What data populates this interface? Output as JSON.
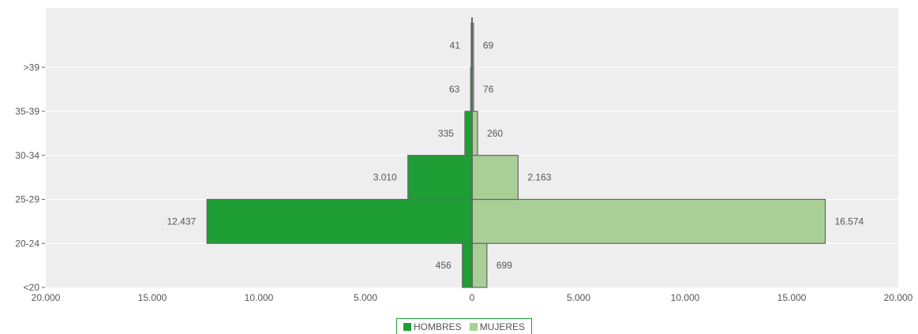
{
  "chart_data": {
    "type": "bar",
    "orientation": "horizontal-population-pyramid",
    "categories": [
      "<20",
      "20-24",
      "25-29",
      "30-34",
      "35-39",
      ">39"
    ],
    "series": [
      {
        "name": "HOMBRES",
        "color": "#1f9e35",
        "values": [
          456,
          12437,
          3010,
          335,
          63,
          41
        ],
        "labels": [
          "456",
          "12.437",
          "3.010",
          "335",
          "63",
          "41"
        ]
      },
      {
        "name": "MUJERES",
        "color": "#a9cf96",
        "values": [
          699,
          16574,
          2163,
          260,
          76,
          69
        ],
        "labels": [
          "699",
          "16.574",
          "2.163",
          "260",
          "76",
          "69"
        ]
      }
    ],
    "xlim": [
      -20000,
      20000
    ],
    "x_ticks": [
      -20000,
      -15000,
      -10000,
      -5000,
      0,
      5000,
      10000,
      15000,
      20000
    ],
    "x_tick_labels": [
      "20.000",
      "15.000",
      "10.000",
      "5.000",
      "0",
      "5.000",
      "10.000",
      "15.000",
      "20.000"
    ],
    "grid": true,
    "background_color": "#eeeeee",
    "title": "",
    "xlabel": "",
    "ylabel": "",
    "legend_position": "bottom"
  }
}
